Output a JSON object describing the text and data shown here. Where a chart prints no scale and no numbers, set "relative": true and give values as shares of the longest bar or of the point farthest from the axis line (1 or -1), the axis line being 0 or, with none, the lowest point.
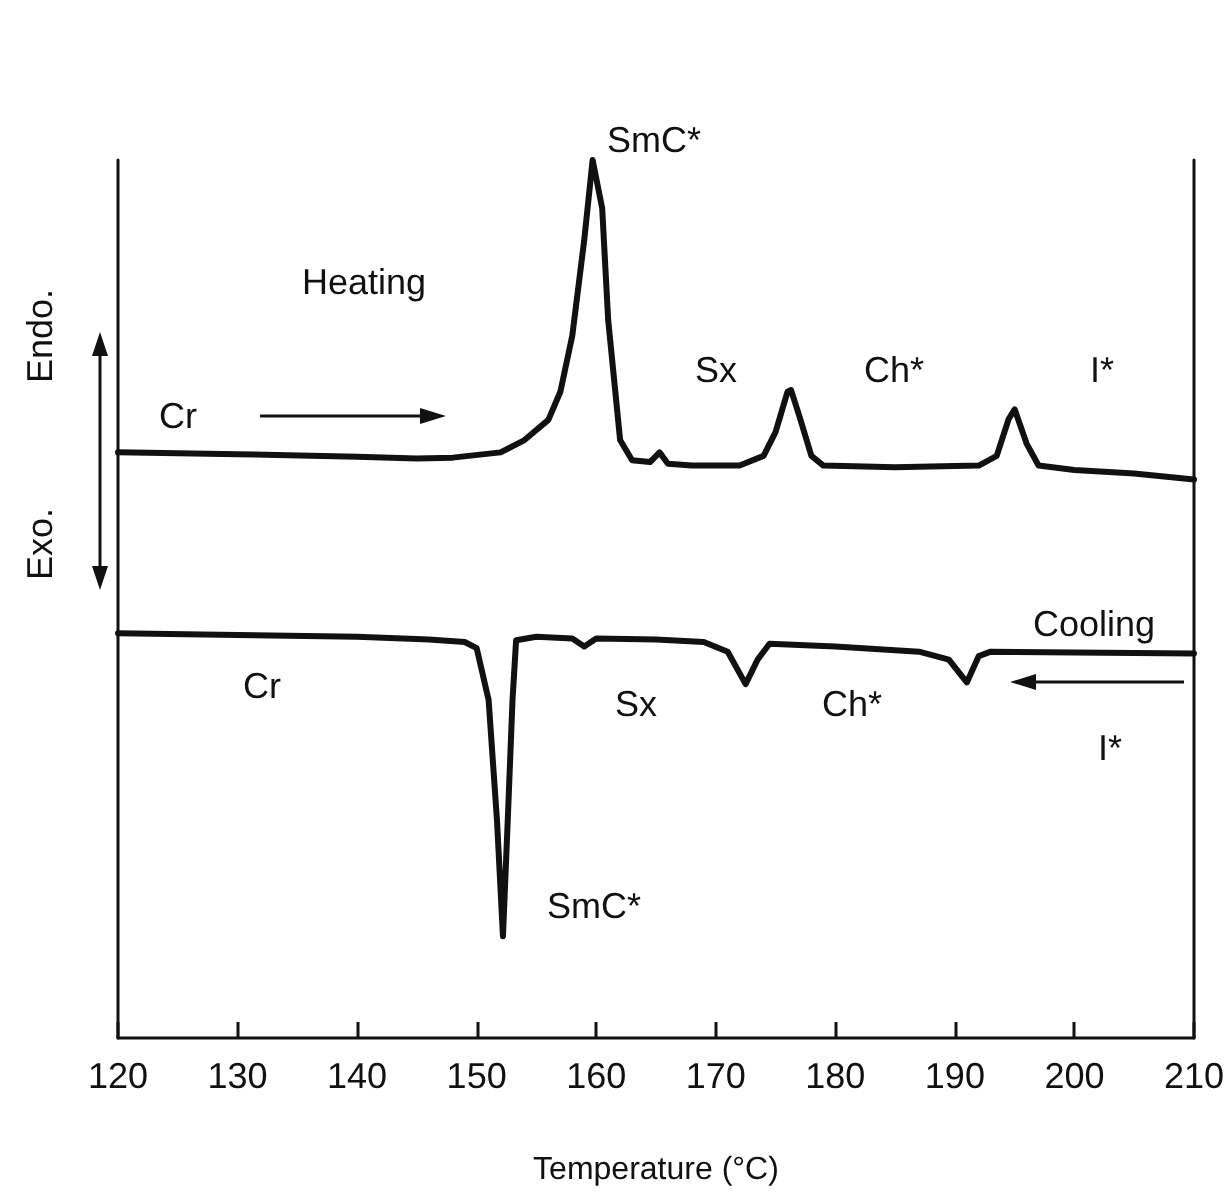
{
  "chart_data": {
    "type": "line",
    "relative": true,
    "xlabel": "Temperature (°C)",
    "xlim": [
      120,
      210
    ],
    "xticks": [
      120,
      130,
      140,
      150,
      160,
      170,
      180,
      190,
      200,
      210
    ],
    "grid": false,
    "marker": "none",
    "line_style": "solid",
    "annotations": [
      "Heating",
      "Cooling",
      "Cr",
      "SmC*",
      "Sx",
      "Ch*",
      "I*",
      "Cr",
      "SmC*",
      "Sx",
      "Ch*",
      "I*",
      "Endo.",
      "Exo."
    ],
    "series": [
      {
        "color": "#111111",
        "x": [
          120,
          130,
          140,
          145,
          148,
          152,
          154,
          156,
          157,
          158,
          159,
          159.7,
          160.5,
          161,
          162,
          163,
          164.5,
          165.3,
          166,
          168,
          172,
          174,
          175,
          176,
          176.3,
          177,
          178,
          179,
          185,
          192,
          193.5,
          194.5,
          195,
          196,
          197,
          200,
          205,
          210
        ],
        "values": [
          0.667,
          0.665,
          0.662,
          0.66,
          0.661,
          0.667,
          0.681,
          0.704,
          0.736,
          0.8,
          0.909,
          1,
          0.945,
          0.818,
          0.681,
          0.658,
          0.656,
          0.667,
          0.654,
          0.652,
          0.652,
          0.663,
          0.69,
          0.736,
          0.738,
          0.708,
          0.663,
          0.652,
          0.65,
          0.652,
          0.663,
          0.705,
          0.716,
          0.677,
          0.652,
          0.647,
          0.643,
          0.636
        ]
      },
      {
        "color": "#111111",
        "x": [
          120,
          130,
          140,
          146,
          149,
          150,
          151,
          151.7,
          152.2,
          152.6,
          153,
          153.3,
          155,
          158,
          159,
          160,
          165,
          169,
          171,
          172.5,
          173.5,
          174.5,
          180,
          187,
          189.5,
          191,
          192,
          193,
          200,
          210
        ],
        "values": [
          0.461,
          0.459,
          0.457,
          0.454,
          0.451,
          0.444,
          0.385,
          0.248,
          0.116,
          0.248,
          0.385,
          0.453,
          0.457,
          0.455,
          0.446,
          0.455,
          0.454,
          0.451,
          0.44,
          0.403,
          0.431,
          0.449,
          0.446,
          0.44,
          0.431,
          0.405,
          0.435,
          0.44,
          0.439,
          0.438
        ]
      }
    ]
  }
}
